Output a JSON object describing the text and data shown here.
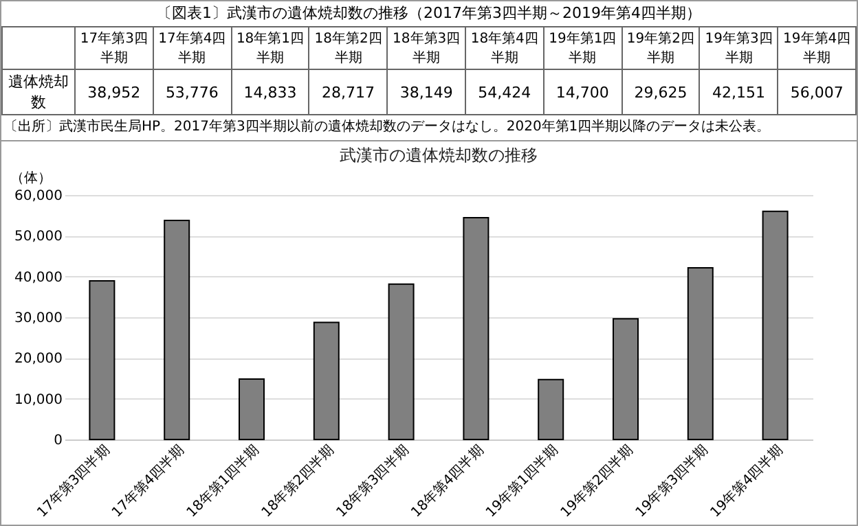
{
  "chart_data": {
    "type": "bar",
    "title": "武漢市の遺体焼却数の推移",
    "ylabel": "（体）",
    "annotations": [
      "〔図表1〕武漢市の遺体焼却数の推移（2017年第3四半期～2019年第4四半期）",
      "遺体焼却数",
      "〔出所〕武漢市民生局HP。2017年第3四半期以前の遺体焼却数のデータはなし。2020年第1四半期以降のデータは未公表。"
    ],
    "categories": [
      "17年第3四半期",
      "17年第4四半期",
      "18年第1四半期",
      "18年第2四半期",
      "18年第3四半期",
      "18年第4四半期",
      "19年第1四半期",
      "19年第2四半期",
      "19年第3四半期",
      "19年第4四半期"
    ],
    "values": [
      38952,
      53776,
      14833,
      28717,
      38149,
      54424,
      14700,
      29625,
      42151,
      56007
    ],
    "value_labels": [
      "38,952",
      "53,776",
      "14,833",
      "28,717",
      "38,149",
      "54,424",
      "14,700",
      "29,625",
      "42,151",
      "56,007"
    ],
    "color": "#808080",
    "ylim": [
      0,
      60000
    ],
    "yticks": [
      0,
      {
        "value": 10000,
        "label": "10,000"
      },
      {
        "value": 20000,
        "label": "20,000"
      },
      {
        "value": 30000,
        "label": "30,000"
      },
      {
        "value": 40000,
        "label": "40,000"
      },
      {
        "value": 50000,
        "label": "50,000"
      },
      {
        "value": 60000,
        "label": "60,000"
      }
    ],
    "grid": "y"
  }
}
